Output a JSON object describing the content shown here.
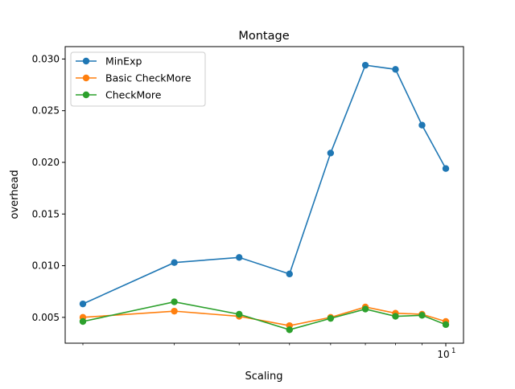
{
  "chart_data": {
    "type": "line",
    "title": "Montage",
    "xlabel": "Scaling",
    "ylabel": "overhead",
    "x_scale": "log",
    "x": [
      2,
      3,
      4,
      5,
      6,
      7,
      8,
      9,
      10
    ],
    "xlim": [
      2,
      10
    ],
    "x_major_tick": {
      "value": 10,
      "label": "10",
      "exponent": "1"
    },
    "ylim": [
      0.0025,
      0.0312
    ],
    "yticks": [
      0.005,
      0.01,
      0.015,
      0.02,
      0.025,
      0.03
    ],
    "ytick_labels": [
      "0.005",
      "0.010",
      "0.015",
      "0.020",
      "0.025",
      "0.030"
    ],
    "grid": false,
    "legend_position": "top-left",
    "series": [
      {
        "name": "MinExp",
        "color": "#1f77b4",
        "values": [
          0.0063,
          0.0103,
          0.0108,
          0.0092,
          0.0209,
          0.0294,
          0.029,
          0.0236,
          0.0194
        ]
      },
      {
        "name": "Basic CheckMore",
        "color": "#ff7f0e",
        "values": [
          0.005,
          0.0056,
          0.0051,
          0.0042,
          0.005,
          0.006,
          0.0054,
          0.0053,
          0.0046
        ]
      },
      {
        "name": "CheckMore",
        "color": "#2ca02c",
        "values": [
          0.0046,
          0.0065,
          0.0053,
          0.0038,
          0.0049,
          0.0058,
          0.0051,
          0.0052,
          0.0043
        ]
      }
    ]
  }
}
